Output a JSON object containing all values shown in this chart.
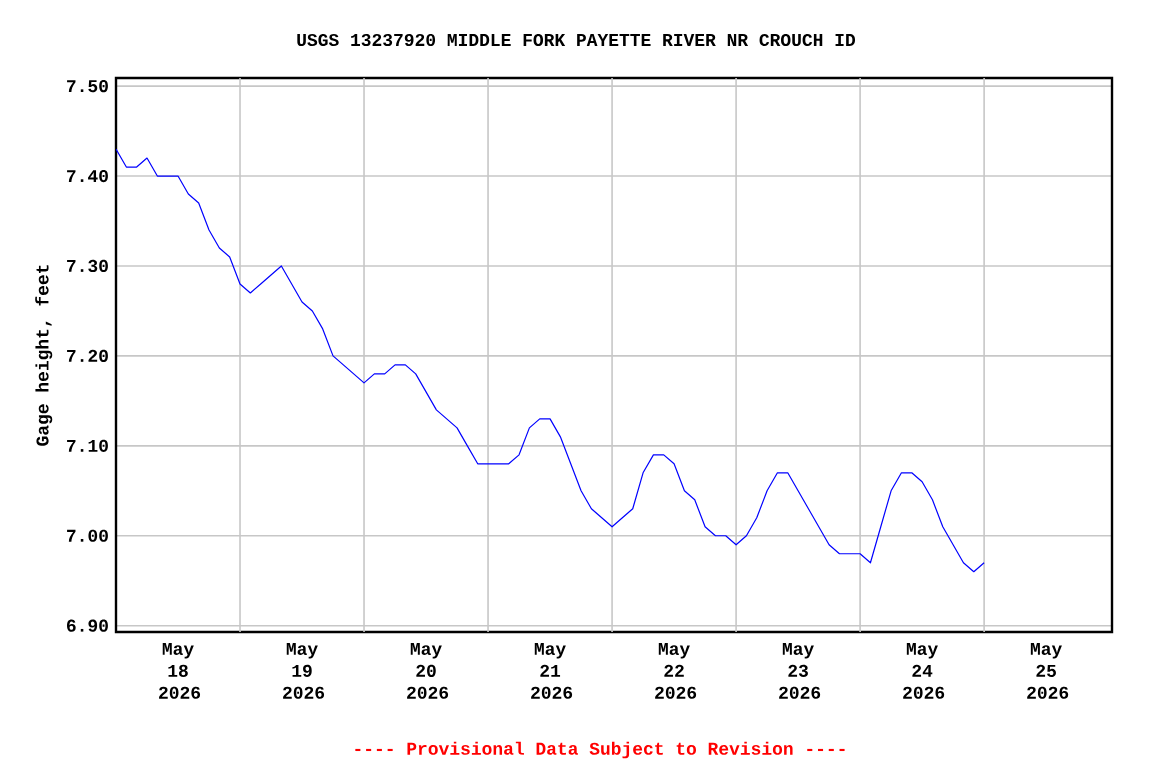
{
  "chart_data": {
    "type": "line",
    "title": "USGS 13237920 MIDDLE FORK PAYETTE RIVER NR CROUCH ID",
    "ylabel": "Gage height, feet",
    "annotations": [
      "---- Provisional Data Subject to Revision ----"
    ],
    "x": [
      "2026-05-17T12:00",
      "2026-05-17T14:00",
      "2026-05-17T16:00",
      "2026-05-17T18:00",
      "2026-05-17T20:00",
      "2026-05-17T22:00",
      "2026-05-18T00:00",
      "2026-05-18T02:00",
      "2026-05-18T04:00",
      "2026-05-18T06:00",
      "2026-05-18T08:00",
      "2026-05-18T10:00",
      "2026-05-18T12:00",
      "2026-05-18T14:00",
      "2026-05-18T16:00",
      "2026-05-18T18:00",
      "2026-05-18T20:00",
      "2026-05-18T22:00",
      "2026-05-19T00:00",
      "2026-05-19T02:00",
      "2026-05-19T04:00",
      "2026-05-19T06:00",
      "2026-05-19T08:00",
      "2026-05-19T10:00",
      "2026-05-19T12:00",
      "2026-05-19T14:00",
      "2026-05-19T16:00",
      "2026-05-19T18:00",
      "2026-05-19T20:00",
      "2026-05-19T22:00",
      "2026-05-20T00:00",
      "2026-05-20T02:00",
      "2026-05-20T04:00",
      "2026-05-20T06:00",
      "2026-05-20T08:00",
      "2026-05-20T10:00",
      "2026-05-20T12:00",
      "2026-05-20T14:00",
      "2026-05-20T16:00",
      "2026-05-20T18:00",
      "2026-05-20T20:00",
      "2026-05-20T22:00",
      "2026-05-21T00:00",
      "2026-05-21T02:00",
      "2026-05-21T04:00",
      "2026-05-21T06:00",
      "2026-05-21T08:00",
      "2026-05-21T10:00",
      "2026-05-21T12:00",
      "2026-05-21T14:00",
      "2026-05-21T16:00",
      "2026-05-21T18:00",
      "2026-05-21T20:00",
      "2026-05-21T22:00",
      "2026-05-22T00:00",
      "2026-05-22T02:00",
      "2026-05-22T04:00",
      "2026-05-22T06:00",
      "2026-05-22T08:00",
      "2026-05-22T10:00",
      "2026-05-22T12:00",
      "2026-05-22T14:00",
      "2026-05-22T16:00",
      "2026-05-22T18:00",
      "2026-05-22T20:00",
      "2026-05-22T22:00",
      "2026-05-23T00:00",
      "2026-05-23T02:00",
      "2026-05-23T04:00",
      "2026-05-23T06:00",
      "2026-05-23T08:00",
      "2026-05-23T10:00",
      "2026-05-23T12:00",
      "2026-05-23T14:00",
      "2026-05-23T16:00",
      "2026-05-23T18:00",
      "2026-05-23T20:00",
      "2026-05-23T22:00",
      "2026-05-24T00:00",
      "2026-05-24T02:00",
      "2026-05-24T04:00",
      "2026-05-24T06:00",
      "2026-05-24T08:00",
      "2026-05-24T10:00",
      "2026-05-24T12:00"
    ],
    "series": [
      {
        "color": "#0000ff",
        "values": [
          7.43,
          7.41,
          7.41,
          7.42,
          7.4,
          7.4,
          7.4,
          7.38,
          7.37,
          7.34,
          7.32,
          7.31,
          7.28,
          7.27,
          7.28,
          7.29,
          7.3,
          7.28,
          7.26,
          7.25,
          7.23,
          7.2,
          7.19,
          7.18,
          7.17,
          7.18,
          7.18,
          7.19,
          7.19,
          7.18,
          7.16,
          7.14,
          7.13,
          7.12,
          7.1,
          7.08,
          7.08,
          7.08,
          7.08,
          7.09,
          7.12,
          7.13,
          7.13,
          7.11,
          7.08,
          7.05,
          7.03,
          7.02,
          7.01,
          7.02,
          7.03,
          7.07,
          7.09,
          7.09,
          7.08,
          7.05,
          7.04,
          7.01,
          7.0,
          7.0,
          6.99,
          7.0,
          7.02,
          7.05,
          7.07,
          7.07,
          7.05,
          7.03,
          7.01,
          6.99,
          6.98,
          6.98,
          6.98,
          6.97,
          7.01,
          7.05,
          7.07,
          7.07,
          7.06,
          7.04,
          7.01,
          6.99,
          6.97,
          6.96,
          6.97
        ]
      }
    ],
    "xlim": [
      "2026-05-17T12:00",
      "2026-05-25T12:45"
    ],
    "ylim": [
      6.893,
      7.509
    ],
    "xticks": [
      {
        "value": "2026-05-18T00:00",
        "label": "May 18 2026"
      },
      {
        "value": "2026-05-19T00:00",
        "label": "May 19 2026"
      },
      {
        "value": "2026-05-20T00:00",
        "label": "May 20 2026"
      },
      {
        "value": "2026-05-21T00:00",
        "label": "May 21 2026"
      },
      {
        "value": "2026-05-22T00:00",
        "label": "May 22 2026"
      },
      {
        "value": "2026-05-23T00:00",
        "label": "May 23 2026"
      },
      {
        "value": "2026-05-24T00:00",
        "label": "May 24 2026"
      },
      {
        "value": "2026-05-25T00:00",
        "label": "May 25 2026"
      },
      {
        "value": "2026-05-18T12:00",
        "label": null
      },
      {
        "value": "2026-05-19T12:00",
        "label": null
      },
      {
        "value": "2026-05-20T12:00",
        "label": null
      },
      {
        "value": "2026-05-21T12:00",
        "label": null
      },
      {
        "value": "2026-05-22T12:00",
        "label": null
      },
      {
        "value": "2026-05-23T12:00",
        "label": null
      },
      {
        "value": "2026-05-24T12:00",
        "label": null
      }
    ],
    "yticks": [
      {
        "value": 6.9,
        "label": "6.90"
      },
      {
        "value": 7.0,
        "label": "7.00"
      },
      {
        "value": 7.1,
        "label": "7.10"
      },
      {
        "value": 7.2,
        "label": "7.20"
      },
      {
        "value": 7.3,
        "label": "7.30"
      },
      {
        "value": 7.4,
        "label": "7.40"
      },
      {
        "value": 7.5,
        "label": "7.50"
      }
    ],
    "grid": true,
    "marker": "none",
    "line_style": "solid"
  }
}
